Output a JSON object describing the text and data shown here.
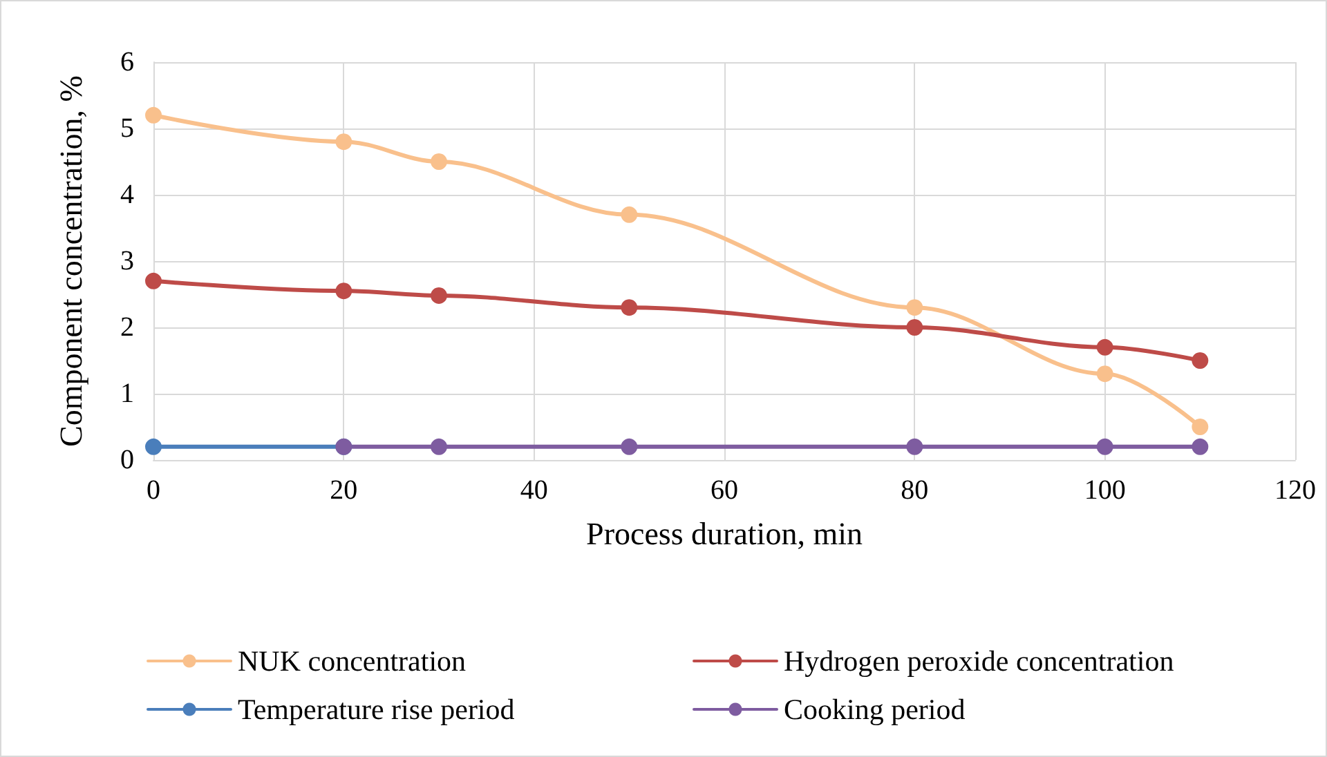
{
  "chart_data": {
    "type": "line",
    "xlabel": "Process duration, min",
    "ylabel": "Component concentration, %",
    "xlim": [
      0,
      120
    ],
    "xticks": [
      0,
      20,
      40,
      60,
      80,
      100,
      120
    ],
    "ylim": [
      0,
      6
    ],
    "yticks": [
      0,
      1,
      2,
      3,
      4,
      5,
      6
    ],
    "grid": true,
    "legend": "bottom",
    "marker": "circle",
    "series": [
      {
        "name": "NUK concentration",
        "color": "#f9c08c",
        "x": [
          0,
          20,
          30,
          50,
          80,
          100,
          110
        ],
        "values": [
          5.2,
          4.8,
          4.5,
          3.7,
          2.3,
          1.3,
          0.5
        ]
      },
      {
        "name": "Hydrogen peroxide concentration",
        "color": "#be4b48",
        "x": [
          0,
          20,
          30,
          50,
          80,
          100,
          110
        ],
        "values": [
          2.7,
          2.55,
          2.48,
          2.3,
          2.0,
          1.7,
          1.5
        ]
      },
      {
        "name": "Temperature rise period",
        "color": "#4a7ebb",
        "x": [
          0,
          20
        ],
        "values": [
          0.2,
          0.2
        ]
      },
      {
        "name": "Cooking period",
        "color": "#7e5ca0",
        "x": [
          20,
          30,
          50,
          80,
          100,
          110
        ],
        "values": [
          0.2,
          0.2,
          0.2,
          0.2,
          0.2,
          0.2
        ]
      }
    ]
  }
}
